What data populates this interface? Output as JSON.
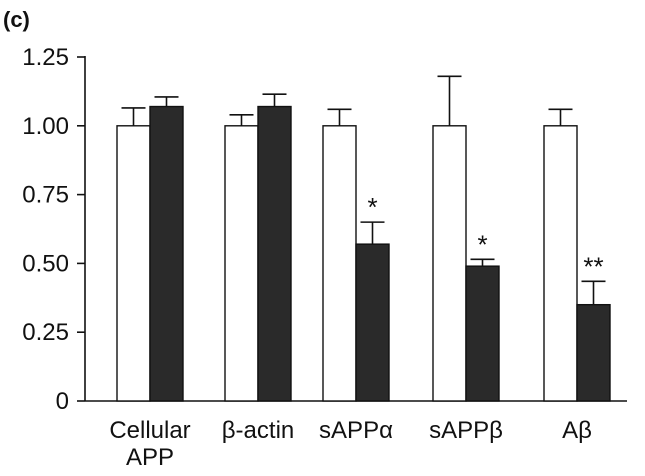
{
  "panel_label": "(c)",
  "chart_data": {
    "type": "bar",
    "title": "",
    "xlabel": "",
    "ylabel": "",
    "ylim": [
      0,
      1.25
    ],
    "yticks": [
      "0",
      "0.25",
      "0.50",
      "0.75",
      "1.00",
      "1.25"
    ],
    "ytick_values": [
      0,
      0.25,
      0.5,
      0.75,
      1.0,
      1.25
    ],
    "categories": [
      [
        "Cellular",
        "APP"
      ],
      [
        "β-actin"
      ],
      [
        "sAPPα"
      ],
      [
        "sAPPβ"
      ],
      [
        "Aβ"
      ]
    ],
    "series": [
      {
        "fill": "#ffffff",
        "values": [
          1.0,
          1.0,
          1.0,
          1.0,
          1.0
        ],
        "errors": [
          0.065,
          0.04,
          0.06,
          0.18,
          0.06
        ]
      },
      {
        "fill": "#2a2a2a",
        "values": [
          1.07,
          1.07,
          0.57,
          0.49,
          0.35
        ],
        "errors": [
          0.035,
          0.045,
          0.08,
          0.025,
          0.085
        ]
      }
    ],
    "significance": [
      "",
      "",
      "*",
      "*",
      "**"
    ],
    "grid": false
  }
}
